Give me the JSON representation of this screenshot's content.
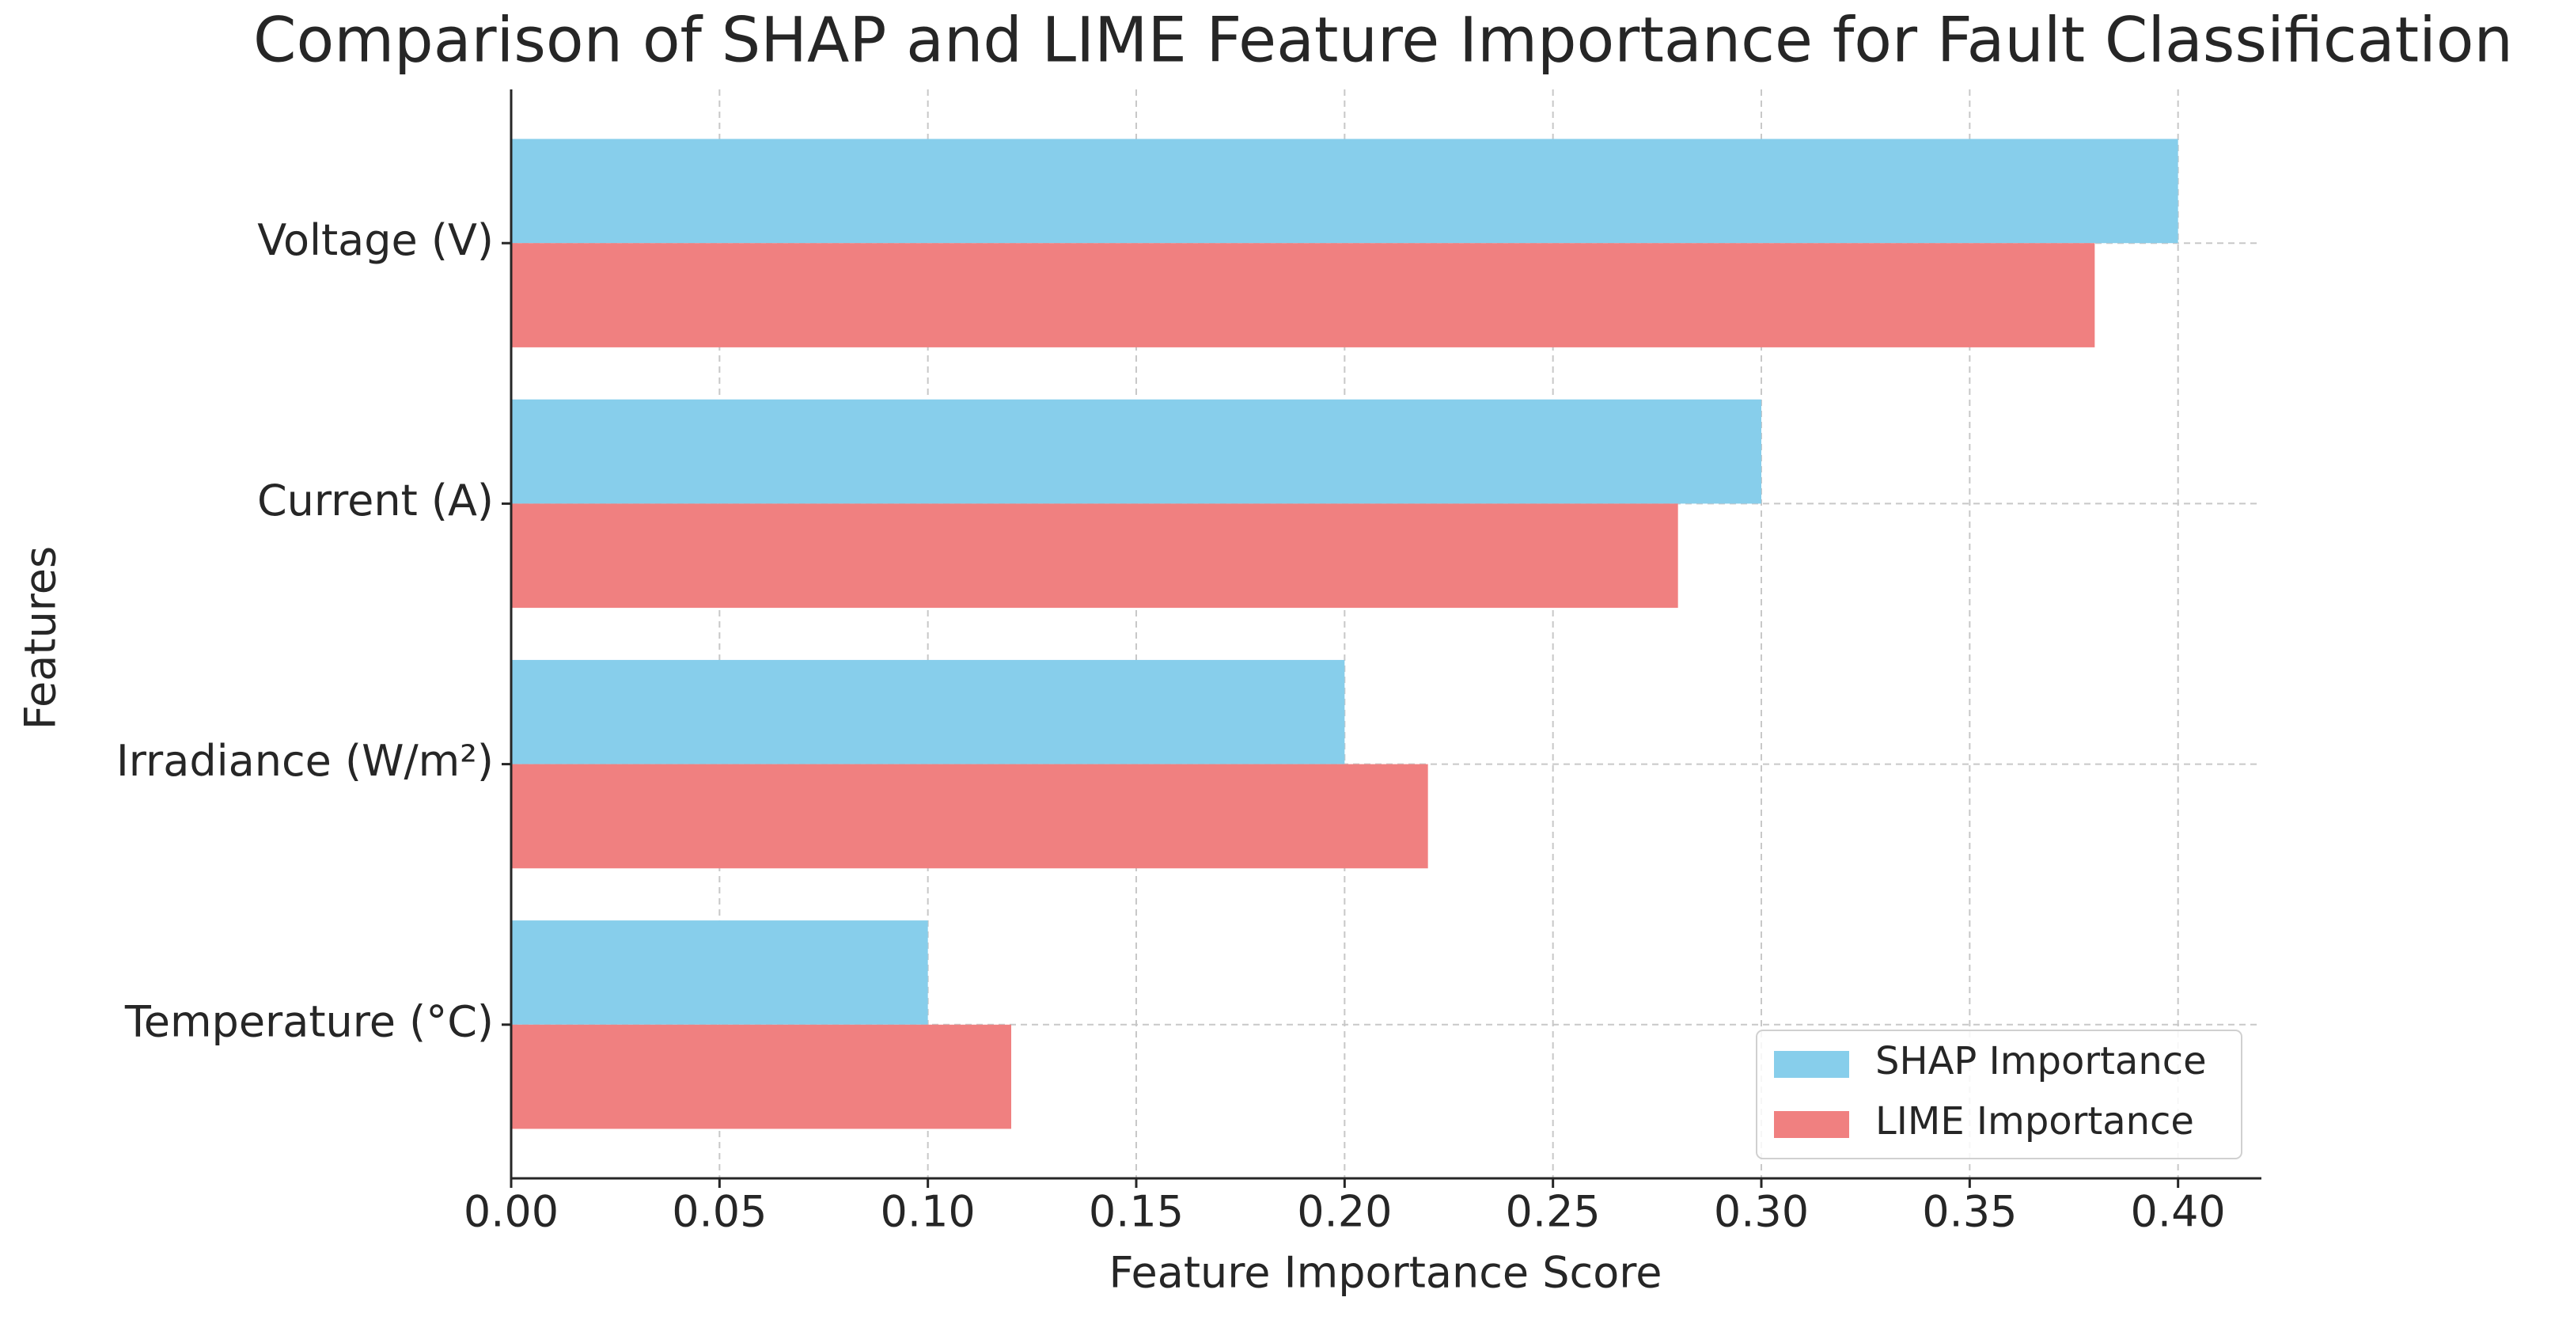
{
  "chart_data": {
    "type": "barh",
    "title": "Comparison of SHAP and LIME Feature Importance for Fault Classification",
    "x_label": "Feature Importance Score",
    "y_label": "Features",
    "categories": [
      "Voltage (V)",
      "Current (A)",
      "Irradiance (W/m²)",
      "Temperature (°C)"
    ],
    "series": [
      {
        "name": "SHAP Importance",
        "color": "#87ceeb",
        "values": [
          0.4,
          0.3,
          0.2,
          0.1
        ]
      },
      {
        "name": "LIME Importance",
        "color": "#f08080",
        "values": [
          0.38,
          0.28,
          0.22,
          0.12
        ]
      }
    ],
    "xlim": [
      0,
      0.42
    ],
    "xticks": [
      {
        "value": 0,
        "label": "0.00"
      },
      {
        "value": 0.05,
        "label": "0.05"
      },
      {
        "value": 0.1,
        "label": "0.10"
      },
      {
        "value": 0.15,
        "label": "0.15"
      },
      {
        "value": 0.2,
        "label": "0.20"
      },
      {
        "value": 0.25,
        "label": "0.25"
      },
      {
        "value": 0.3,
        "label": "0.30"
      },
      {
        "value": 0.35,
        "label": "0.35"
      },
      {
        "value": 0.4,
        "label": "0.40"
      }
    ],
    "grid": true,
    "legend_location": "lower right"
  }
}
